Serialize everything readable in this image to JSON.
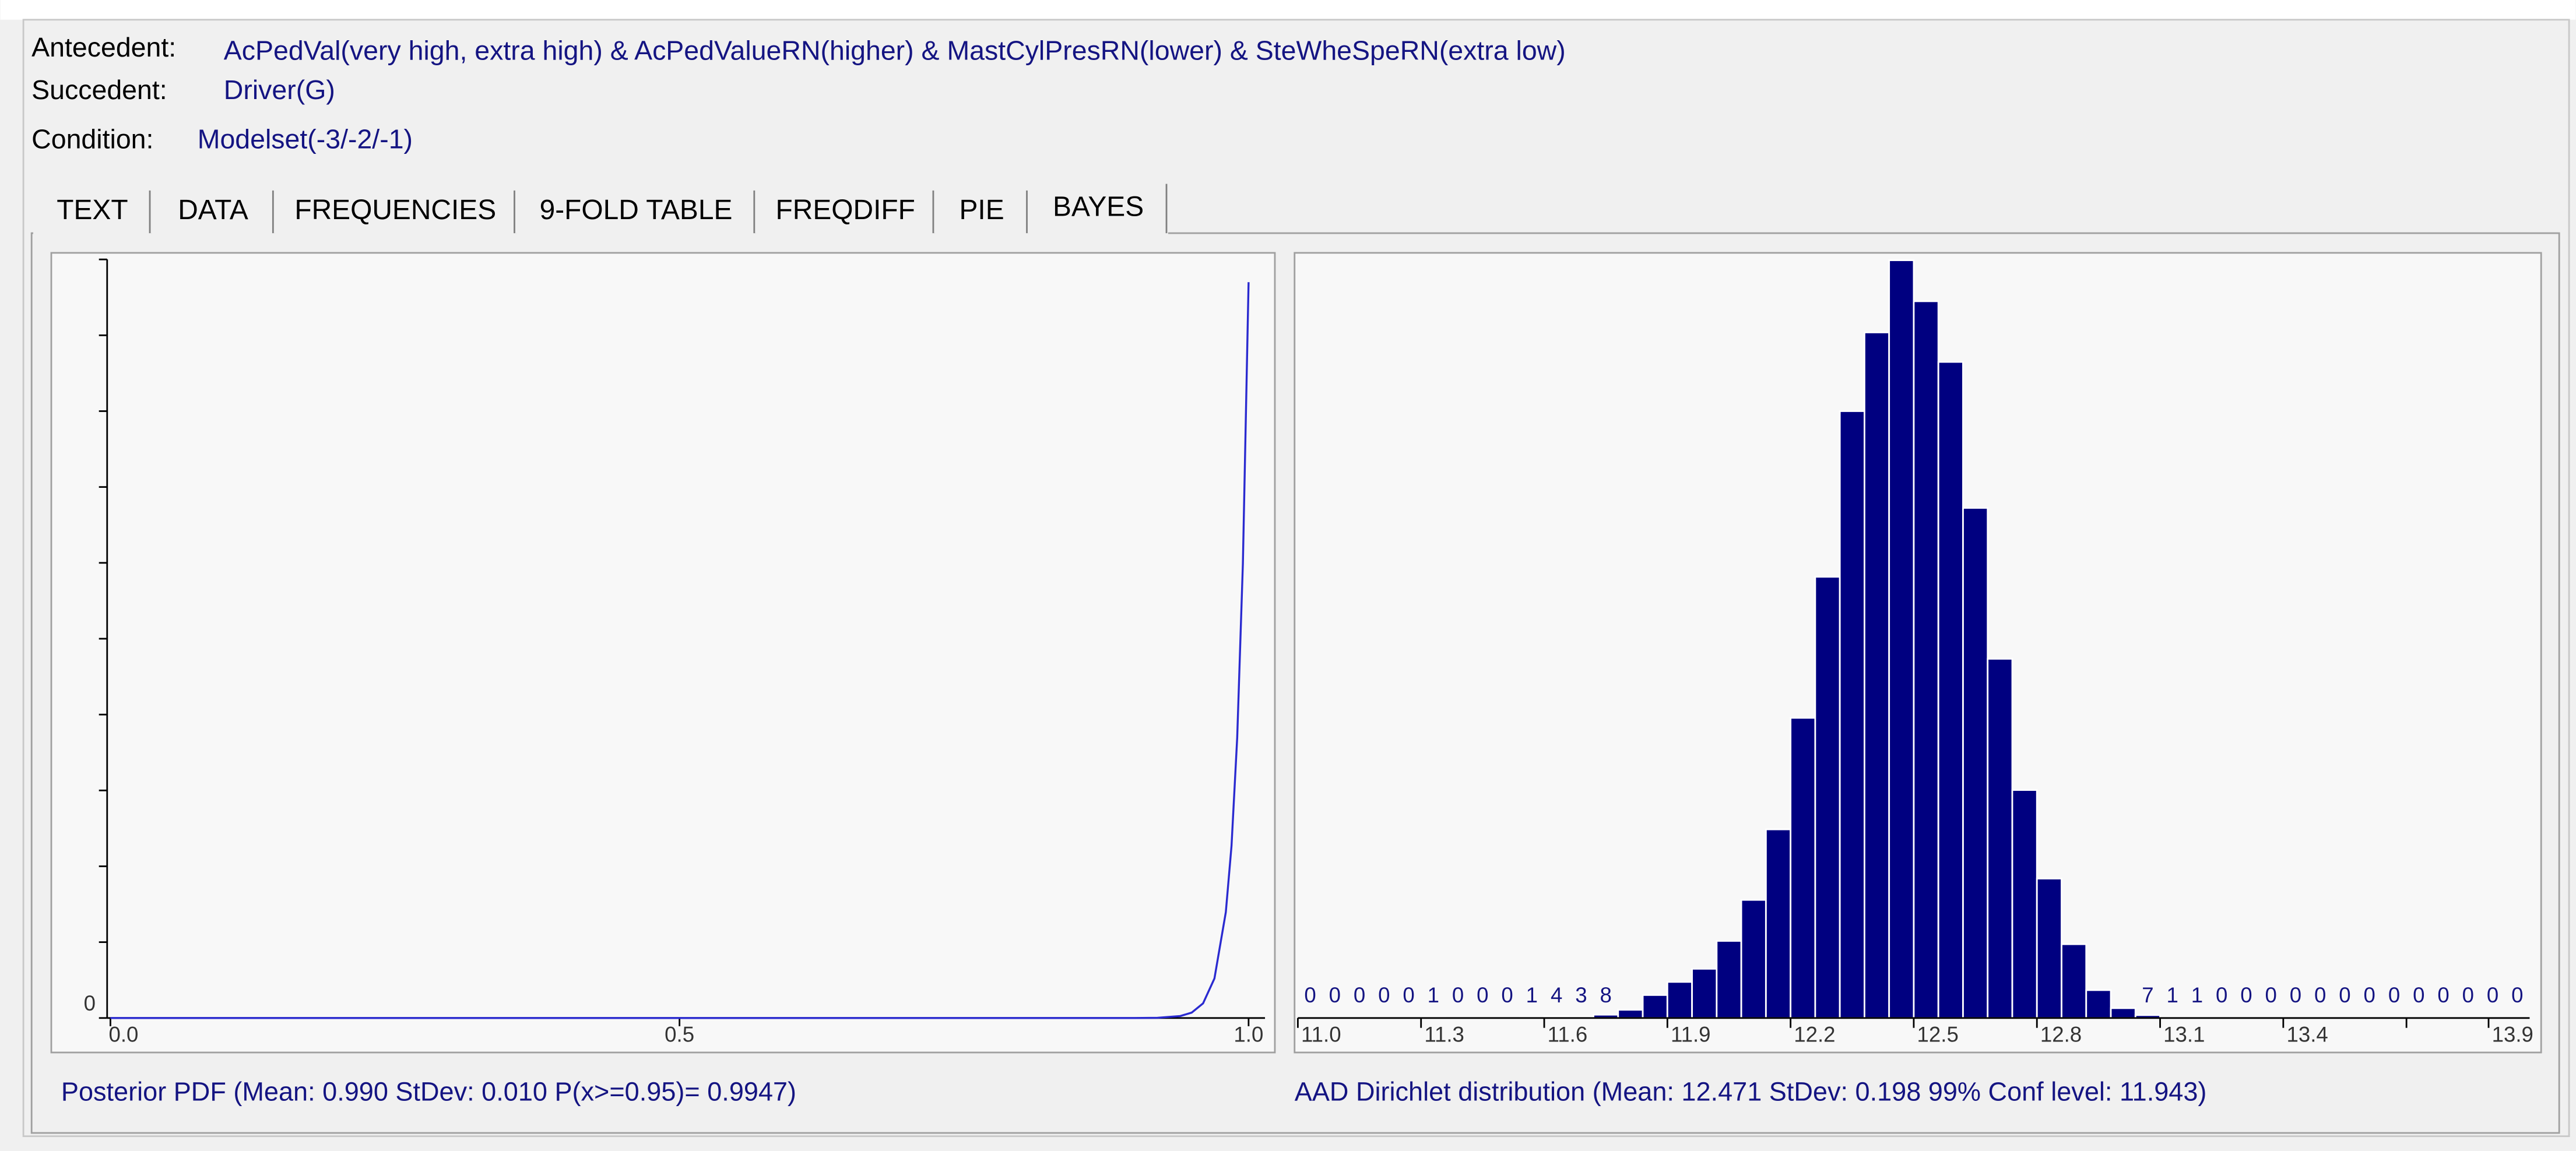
{
  "header": {
    "antecedent_label": "Antecedent:",
    "antecedent": "AcPedVal(very high, extra high) & AcPedValueRN(higher) & MastCylPresRN(lower) & SteWheSpeRN(extra low)",
    "succedent_label": "Succedent:",
    "succedent": "Driver(G)",
    "condition_label": "Condition:",
    "condition": "Modelset(-3/-2/-1)"
  },
  "tabs": [
    "TEXT",
    "DATA",
    "FREQUENCIES",
    "9-FOLD TABLE",
    "FREQDIFF",
    "PIE",
    "BAYES"
  ],
  "chart_data": [
    {
      "type": "line",
      "caption": "Posterior PDF  (Mean: 0.990  StDev: 0.010  P(x>=0.95)= 0.9947)",
      "color": "#2a2ad0",
      "x": [
        0,
        0.1,
        0.2,
        0.3,
        0.4,
        0.5,
        0.6,
        0.7,
        0.8,
        0.9,
        0.92,
        0.94,
        0.95,
        0.96,
        0.97,
        0.98,
        0.985,
        0.99,
        0.995,
        1.0
      ],
      "values": [
        0,
        0,
        0,
        0,
        0,
        0,
        0,
        0,
        0,
        0,
        0.03,
        0.26,
        0.71,
        1.93,
        5.21,
        13.95,
        22.7,
        36.96,
        59.9,
        97
      ],
      "xlim": [
        0,
        1
      ],
      "xticks": [
        {
          "value": 0,
          "label": "0.0"
        },
        0.5,
        {
          "value": 1,
          "label": "1.0"
        }
      ],
      "ylim": [
        0,
        100
      ],
      "yticks": [
        0
      ],
      "minor_yticks": [
        10,
        20,
        30,
        40,
        50,
        60,
        70,
        80,
        90,
        100
      ]
    },
    {
      "type": "histogram",
      "caption": "AAD Dirichlet distribution  (Mean: 12.471  StDev: 0.198  99% Conf level: 11.943)",
      "color": "#000080",
      "bins": [
        11.0,
        11.06,
        11.12,
        11.18,
        11.24,
        11.3,
        11.36,
        11.42,
        11.48,
        11.54,
        11.6,
        11.66,
        11.72,
        11.78,
        11.84,
        11.9,
        11.96,
        12.02,
        12.08,
        12.14,
        12.2,
        12.26,
        12.32,
        12.38,
        12.44,
        12.5,
        12.56,
        12.62,
        12.68,
        12.74,
        12.8,
        12.86,
        12.92,
        12.98,
        13.04,
        13.1,
        13.16,
        13.22,
        13.28,
        13.34,
        13.4,
        13.46,
        13.52,
        13.58,
        13.64,
        13.7,
        13.76,
        13.82,
        13.88,
        13.94,
        14.0
      ],
      "values": [
        0,
        0,
        0,
        0,
        0,
        1,
        0,
        0,
        0,
        1,
        4,
        3,
        8,
        20,
        56,
        88,
        120,
        188,
        288,
        460,
        732,
        1076,
        1480,
        1672,
        1848,
        1748,
        1600,
        1244,
        876,
        556,
        340,
        180,
        68,
        24,
        7,
        1,
        1,
        0,
        0,
        0,
        0,
        0,
        0,
        0,
        0,
        0,
        0,
        0,
        0,
        0
      ],
      "xlim": [
        11.0,
        14.0
      ],
      "xticks": [
        {
          "value": 11,
          "label": "11.0"
        },
        11.3,
        11.6,
        11.9,
        12.2,
        12.5,
        12.8,
        13.1,
        13.4,
        13.9
      ],
      "minor_xticks": [
        13.7
      ],
      "ylim": [
        0,
        1850
      ]
    }
  ]
}
